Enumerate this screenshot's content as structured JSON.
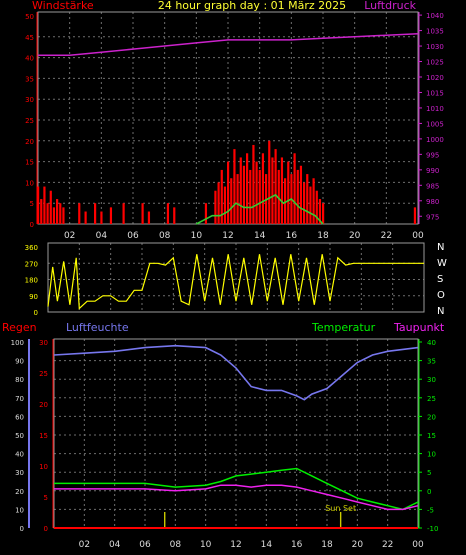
{
  "title": "24 hour graph day : 01 März 2025",
  "colors": {
    "background": "#000000",
    "frame": "#9a9a9a",
    "grid": "#6e6e6e",
    "wind": "#ff0000",
    "gust": "#ff0000",
    "windavg": "#33cc33",
    "pressure": "#cc22cc",
    "direction": "#ffff00",
    "rain": "#ff0000",
    "humidity": "#7777ee",
    "temperature": "#00ee00",
    "dewpoint": "#ee22ee",
    "sun": "#cccc00",
    "xlabel": "#dddddd"
  },
  "chart_data": [
    {
      "type": "bar",
      "title": "24 hour graph day : 01 März 2025",
      "ylabel_left": "Windstärke",
      "ylabel_right": "Luftdruck",
      "x_ticks": [
        "02",
        "04",
        "06",
        "08",
        "10",
        "12",
        "14",
        "16",
        "18",
        "20",
        "22",
        "00"
      ],
      "ylim_left": [
        0,
        50
      ],
      "y_ticks_left": [
        "0",
        "5",
        "10",
        "15",
        "20",
        "25",
        "30",
        "35",
        "40",
        "45",
        "50"
      ],
      "ylim_right": [
        972.5,
        1041
      ],
      "y_ticks_right": [
        "975",
        "980",
        "985",
        "990",
        "995",
        "1000",
        "1005",
        "1010",
        "1015",
        "1020",
        "1025",
        "1030",
        "1035",
        "1040"
      ],
      "grid": true,
      "series": [
        {
          "name": "Windstärke",
          "kind": "bars",
          "x": [
            0.0,
            0.2,
            0.4,
            0.6,
            0.8,
            1.0,
            1.2,
            1.4,
            1.6,
            2.6,
            3.0,
            3.6,
            4.0,
            4.6,
            5.4,
            6.6,
            7.0,
            8.2,
            8.6,
            10.6,
            11.2,
            11.4,
            11.6,
            11.8,
            12.0,
            12.2,
            12.4,
            12.6,
            12.8,
            13.0,
            13.2,
            13.4,
            13.6,
            13.8,
            14.0,
            14.2,
            14.4,
            14.6,
            14.8,
            15.0,
            15.2,
            15.4,
            15.6,
            15.8,
            16.0,
            16.2,
            16.4,
            16.6,
            16.8,
            17.0,
            17.2,
            17.4,
            17.6,
            17.8,
            18.0,
            23.8
          ],
          "values": [
            9,
            6,
            9,
            5,
            8,
            4,
            6,
            5,
            4,
            5,
            3,
            5,
            3,
            4,
            5,
            5,
            3,
            5,
            4,
            5,
            8,
            10,
            13,
            9,
            15,
            11,
            18,
            12,
            16,
            14,
            17,
            13,
            19,
            15,
            13,
            17,
            12,
            20,
            16,
            18,
            13,
            16,
            11,
            15,
            12,
            17,
            13,
            14,
            10,
            12,
            9,
            11,
            8,
            6,
            5,
            4
          ]
        },
        {
          "name": "Luftdruck",
          "kind": "line",
          "x": [
            0,
            2,
            4,
            6,
            8,
            10,
            12,
            14,
            16,
            18,
            20,
            22,
            24
          ],
          "values": [
            1027,
            1027,
            1028,
            1029,
            1030,
            1031,
            1032,
            1032,
            1032,
            1032.5,
            1033,
            1033.5,
            1034
          ]
        },
        {
          "name": "Wind avg",
          "kind": "line",
          "x": [
            10,
            10.5,
            11,
            11.5,
            12,
            12.5,
            13,
            13.5,
            14,
            14.5,
            15,
            15.5,
            16,
            16.5,
            17,
            17.5,
            18
          ],
          "values": [
            0,
            1,
            2,
            2,
            3,
            5,
            4,
            4,
            5,
            6,
            7,
            5,
            6,
            4,
            3,
            2,
            0
          ]
        }
      ]
    },
    {
      "type": "scatter",
      "ylabel_right": "N W S O N",
      "x_ticks": [
        "02",
        "04",
        "06",
        "08",
        "10",
        "12",
        "14",
        "16",
        "18",
        "20",
        "22",
        "00"
      ],
      "ylim": [
        0,
        360
      ],
      "y_ticks": [
        "0",
        "90",
        "180",
        "270",
        "360"
      ],
      "compass": [
        "N",
        "W",
        "S",
        "O",
        "N"
      ],
      "grid": true,
      "series": [
        {
          "name": "Windrichtung",
          "x": [
            0,
            0.3,
            0.6,
            1.0,
            1.4,
            1.8,
            2.0,
            2.5,
            3.0,
            3.5,
            4.0,
            4.5,
            5.0,
            5.5,
            6.0,
            6.5,
            7.0,
            7.5,
            8.0,
            8.5,
            9.0,
            9.5,
            10.0,
            10.5,
            11.0,
            11.5,
            12.0,
            12.5,
            13.0,
            13.5,
            14.0,
            14.5,
            15.0,
            15.5,
            16.0,
            16.5,
            17.0,
            17.5,
            18.0,
            18.5,
            19.0,
            19.5,
            20.0,
            20.5,
            21.0,
            21.5,
            22.0,
            22.5,
            23.0,
            23.5,
            24.0
          ],
          "values": [
            30,
            250,
            60,
            280,
            40,
            300,
            20,
            60,
            60,
            90,
            90,
            60,
            60,
            120,
            120,
            270,
            270,
            260,
            300,
            60,
            40,
            320,
            60,
            300,
            40,
            320,
            60,
            300,
            40,
            320,
            60,
            300,
            40,
            320,
            60,
            300,
            40,
            320,
            60,
            300,
            260,
            270,
            270,
            270,
            270,
            270,
            270,
            270,
            270,
            270,
            270
          ]
        }
      ]
    },
    {
      "type": "line",
      "ylabel_left": "Regen",
      "ylabel_humidity": "Luftfeuchte",
      "ylabel_temp": "Temperatur",
      "ylabel_dew": "Taupunkt",
      "annotation": "Sun Set",
      "x_ticks": [
        "02",
        "04",
        "06",
        "08",
        "10",
        "12",
        "14",
        "16",
        "18",
        "20",
        "22",
        "00"
      ],
      "ylim_humidity": [
        0,
        100
      ],
      "y_ticks_humidity": [
        "0",
        "10",
        "20",
        "30",
        "40",
        "50",
        "60",
        "70",
        "80",
        "90",
        "100"
      ],
      "ylim_rain": [
        0,
        30
      ],
      "y_ticks_rain": [
        "0",
        "5",
        "10",
        "15",
        "20",
        "25",
        "30"
      ],
      "ylim_temp": [
        -10,
        40
      ],
      "y_ticks_temp": [
        "-10",
        "-5",
        "0",
        "5",
        "10",
        "15",
        "20",
        "25",
        "30",
        "35",
        "40"
      ],
      "grid": true,
      "series": [
        {
          "name": "Luftfeuchte",
          "x": [
            0,
            2,
            4,
            6,
            8,
            10,
            11,
            12,
            13,
            14,
            15,
            16,
            16.5,
            17,
            18,
            19,
            20,
            21,
            22,
            23,
            24
          ],
          "values": [
            93,
            94,
            95,
            97,
            98,
            97,
            93,
            86,
            76,
            74,
            74,
            71,
            69,
            72,
            75,
            82,
            89,
            93,
            95,
            96,
            97
          ]
        },
        {
          "name": "Temperatur",
          "x": [
            0,
            2,
            4,
            6,
            8,
            10,
            11,
            12,
            13,
            14,
            15,
            16,
            17,
            18,
            19,
            20,
            21,
            22,
            23,
            24
          ],
          "values": [
            2,
            2,
            2,
            2,
            1,
            1.5,
            2.5,
            4,
            4.5,
            5,
            5.5,
            6,
            4,
            2,
            0,
            -2,
            -3,
            -4,
            -5,
            -3
          ]
        },
        {
          "name": "Taupunkt",
          "x": [
            0,
            2,
            4,
            6,
            8,
            10,
            11,
            12,
            13,
            14,
            15,
            16,
            17,
            18,
            19,
            20,
            21,
            22,
            23,
            24
          ],
          "values": [
            0.5,
            0.5,
            0.5,
            0.5,
            0,
            0.5,
            1.5,
            1.5,
            1,
            1.5,
            1.5,
            1,
            0,
            -1,
            -2,
            -3,
            -4,
            -5,
            -5,
            -4
          ]
        },
        {
          "name": "Regen",
          "x": [
            0,
            24
          ],
          "values": [
            0,
            0
          ]
        }
      ],
      "markers": [
        7.3,
        18.9
      ]
    }
  ]
}
